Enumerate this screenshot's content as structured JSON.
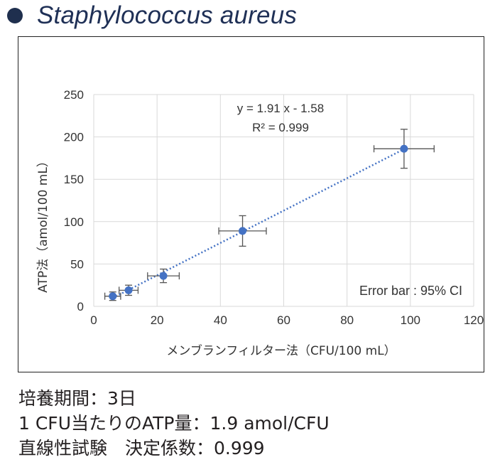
{
  "title": "Staphylococcus aureus",
  "chart_data": {
    "type": "scatter",
    "xlabel": "メンブランフィルター法（CFU/100 mL）",
    "ylabel": "ATP法（amol/100 mL）",
    "xlim": [
      0,
      120
    ],
    "ylim": [
      0,
      250
    ],
    "x_ticks": [
      "0",
      "20",
      "40",
      "60",
      "80",
      "100",
      "120"
    ],
    "y_ticks": [
      "0",
      "50",
      "100",
      "150",
      "200",
      "250"
    ],
    "grid": true,
    "points": [
      {
        "x": 6,
        "y": 12,
        "x_err": 2.5,
        "y_err": 5
      },
      {
        "x": 11,
        "y": 19,
        "x_err": 3,
        "y_err": 6
      },
      {
        "x": 22,
        "y": 36,
        "x_err": 5,
        "y_err": 8
      },
      {
        "x": 47,
        "y": 89,
        "x_err": 7.5,
        "y_err": 18
      },
      {
        "x": 98,
        "y": 186,
        "x_err": 9.5,
        "y_err": 23
      }
    ],
    "trendline": {
      "slope": 1.91,
      "intercept": -1.58
    },
    "equation": "y = 1.91 x - 1.58",
    "r2": "R² = 0.999",
    "annotation": "Error bar : 95% CI",
    "colors": {
      "point": "#4472c4",
      "trendline": "#4472c4",
      "grid": "#d9d9d9",
      "errorbar": "#555555"
    }
  },
  "notes": [
    "培養期間：3日",
    "1 CFU当たりのATP量：1.9 amol/CFU",
    "直線性試験　決定係数：0.999"
  ]
}
